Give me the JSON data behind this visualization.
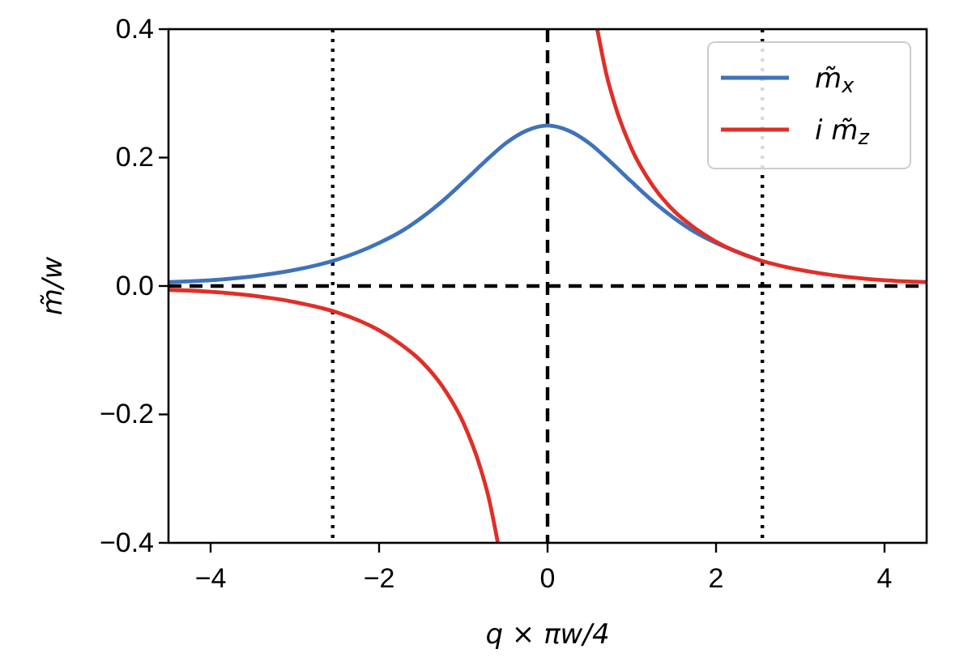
{
  "chart_data": {
    "type": "line",
    "xlabel": "q × πw/4",
    "ylabel": "m̃/w",
    "xlim": [
      -4.5,
      4.5
    ],
    "ylim": [
      -0.4,
      0.4
    ],
    "xticks": [
      {
        "value": -4,
        "label": "−4"
      },
      {
        "value": -2,
        "label": "−2"
      },
      0,
      2,
      4
    ],
    "yticks": [
      {
        "value": -0.4,
        "label": "−0.4"
      },
      {
        "value": -0.2,
        "label": "−0.2"
      },
      {
        "value": 0,
        "label": "0.0"
      },
      {
        "value": 0.2,
        "label": "0.2"
      },
      {
        "value": 0.4,
        "label": "0.4"
      }
    ],
    "grid": false,
    "legend": "top right",
    "line_style": "solid",
    "marker": "none",
    "series": [
      {
        "name": "m̃$_{x}$",
        "color": "#3f73b9",
        "x": [
          -4.5,
          -4,
          -3.5,
          -3,
          -2.5,
          -2,
          -1.75,
          -1.5,
          -1.25,
          -1,
          -0.75,
          -0.5,
          -0.25,
          0,
          0.25,
          0.5,
          0.75,
          1,
          1.25,
          1.5,
          1.75,
          2,
          2.5
        ],
        "values": [
          0.006,
          0.009,
          0.015,
          0.025,
          0.041,
          0.067,
          0.084,
          0.106,
          0.132,
          0.162,
          0.193,
          0.222,
          0.242,
          0.25,
          0.242,
          0.222,
          0.193,
          0.162,
          0.132,
          0.106,
          0.084,
          0.067,
          0.041
        ]
      },
      {
        "name": "i m̃$_{z}$",
        "color": "#e02f28",
        "x": [
          -4.5,
          -4,
          -3.5,
          -3,
          -2.5,
          -2,
          -1.75,
          -1.5,
          -1.25,
          -1,
          -0.8,
          -0.7,
          -0.59,
          0,
          0.59,
          0.7,
          0.8,
          1,
          1.25,
          1.5,
          1.75,
          2,
          2.5,
          3,
          3.5,
          4,
          4.5
        ],
        "values": [
          -0.006,
          -0.009,
          -0.015,
          -0.025,
          -0.041,
          -0.069,
          -0.09,
          -0.117,
          -0.156,
          -0.213,
          -0.282,
          -0.329,
          -0.4,
          null,
          0.4,
          0.329,
          0.282,
          0.213,
          0.156,
          0.117,
          0.09,
          0.069,
          0.041,
          0.025,
          0.015,
          0.009,
          0.006
        ]
      }
    ],
    "ref_lines": [
      {
        "axis": "x",
        "value": 0,
        "color": "#000000",
        "line_style": "dashed"
      },
      {
        "axis": "y",
        "value": 0,
        "color": "#000000",
        "line_style": "dashed"
      },
      {
        "axis": "x",
        "value": -2.55,
        "color": "#000000",
        "line_style": "dotted"
      },
      {
        "axis": "x",
        "value": 2.55,
        "color": "#000000",
        "line_style": "dotted"
      }
    ]
  }
}
